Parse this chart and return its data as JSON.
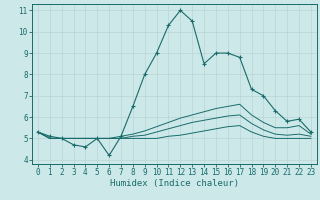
{
  "xlabel": "Humidex (Indice chaleur)",
  "xlim_min": -0.5,
  "xlim_max": 23.5,
  "ylim_min": 3.8,
  "ylim_max": 11.3,
  "yticks": [
    4,
    5,
    6,
    7,
    8,
    9,
    10,
    11
  ],
  "xticks": [
    0,
    1,
    2,
    3,
    4,
    5,
    6,
    7,
    8,
    9,
    10,
    11,
    12,
    13,
    14,
    15,
    16,
    17,
    18,
    19,
    20,
    21,
    22,
    23
  ],
  "bg_color": "#cce8e8",
  "line_color": "#1a6b6b",
  "grid_color": "#b8d4d4",
  "series_main": [
    5.3,
    5.1,
    5.0,
    4.7,
    4.6,
    5.0,
    4.2,
    5.1,
    6.5,
    8.0,
    9.0,
    10.3,
    11.0,
    10.5,
    8.5,
    9.0,
    9.0,
    8.8,
    7.3,
    7.0,
    6.3,
    5.8,
    5.9,
    5.3
  ],
  "series2": [
    5.3,
    5.0,
    5.0,
    5.0,
    5.0,
    5.0,
    5.0,
    5.1,
    5.2,
    5.35,
    5.55,
    5.75,
    5.95,
    6.1,
    6.25,
    6.4,
    6.5,
    6.6,
    6.1,
    5.75,
    5.5,
    5.5,
    5.6,
    5.2
  ],
  "series3": [
    5.3,
    5.0,
    5.0,
    5.0,
    5.0,
    5.0,
    5.0,
    5.0,
    5.1,
    5.15,
    5.3,
    5.45,
    5.6,
    5.75,
    5.85,
    5.95,
    6.05,
    6.1,
    5.7,
    5.4,
    5.2,
    5.15,
    5.2,
    5.1
  ],
  "series4": [
    5.3,
    5.0,
    5.0,
    5.0,
    5.0,
    5.0,
    5.0,
    5.0,
    5.0,
    5.0,
    5.0,
    5.1,
    5.15,
    5.25,
    5.35,
    5.45,
    5.55,
    5.6,
    5.3,
    5.1,
    5.0,
    5.0,
    5.0,
    5.0
  ]
}
